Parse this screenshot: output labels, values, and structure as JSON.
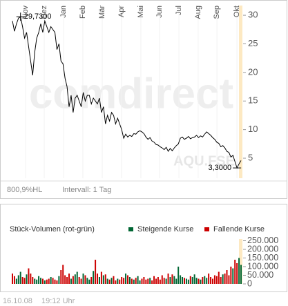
{
  "chart_data": [
    {
      "type": "line",
      "color": "#000000",
      "xlim": [
        0,
        113
      ],
      "xticks": [
        {
          "value": 6.5,
          "label": "Nov"
        },
        {
          "value": 15.7,
          "label": "Dez"
        },
        {
          "value": 25.3,
          "label": "Jan"
        },
        {
          "value": 34.8,
          "label": "Feb"
        },
        {
          "value": 44.4,
          "label": "Mär"
        },
        {
          "value": 53.9,
          "label": "Apr"
        },
        {
          "value": 63.5,
          "label": "Mai"
        },
        {
          "value": 72.7,
          "label": "Jun"
        },
        {
          "value": 82.3,
          "label": "Jul"
        },
        {
          "value": 91.8,
          "label": "Aug"
        },
        {
          "value": 101.1,
          "label": "Sep"
        },
        {
          "value": 111,
          "label": "Okt"
        }
      ],
      "ylim": [
        1.5,
        31.7
      ],
      "yticks": [
        5,
        10,
        15,
        20,
        25,
        30
      ],
      "values": [
        29,
        27.2,
        28.5,
        29.5,
        29.73,
        28,
        26,
        27,
        24.5,
        22,
        19.5,
        23.5,
        26,
        27,
        28.5,
        27,
        29,
        28,
        27,
        28,
        27.5,
        27,
        24,
        25,
        22,
        21.5,
        19,
        17.5,
        14,
        16,
        13,
        15.5,
        16,
        15,
        14,
        16.5,
        15,
        16,
        16,
        14.5,
        15.5,
        15,
        14.5,
        15.5,
        13,
        14,
        11,
        12.5,
        11.5,
        13,
        12.5,
        11,
        12,
        11,
        10,
        8.5,
        9.2,
        8.7,
        9,
        8.8,
        9.3,
        9.2,
        9.6,
        9.8,
        9.6,
        9.3,
        8.7,
        8.3,
        8.6,
        8,
        7.8,
        7.4,
        7.3,
        7,
        6.8,
        6.5,
        6.9,
        6.2,
        6.7,
        6.3,
        6.8,
        7.2,
        7.5,
        8.5,
        8.7,
        8.3,
        8.5,
        8.8,
        8.4,
        8.6,
        8.7,
        9,
        8.6,
        8.9,
        8.7,
        9.2,
        9.6,
        9.3,
        9,
        8.6,
        8.3,
        7.8,
        7.6,
        7,
        7.2,
        6.8,
        6.2,
        6,
        5.2,
        5.5,
        4.4,
        3.3,
        4,
        4.6
      ],
      "max_label": "29,7300",
      "min_label": "3,3000",
      "watermark": "comdirect",
      "symbol": "AQU.FSE",
      "range_note": "800,9%HL",
      "interval": "Intervall: 1 Tag"
    },
    {
      "type": "bar",
      "title": "Stück-Volumen (rot-grün)",
      "series_names": [
        "Steigende Kurse",
        "Fallende Kurse"
      ],
      "rising_color": "#006633",
      "falling_color": "#cc0000",
      "xlim": [
        0,
        113
      ],
      "ylim": [
        0,
        260000
      ],
      "yticks": [
        {
          "value": 250000,
          "label": "250.000"
        },
        {
          "value": 200000,
          "label": "200.000"
        },
        {
          "value": 150000,
          "label": "150.000"
        },
        {
          "value": 100000,
          "label": "100.000"
        },
        {
          "value": 50000,
          "label": "50.000"
        },
        0
      ],
      "values": [
        60000,
        45000,
        30000,
        50000,
        70000,
        40000,
        35000,
        55000,
        90000,
        60000,
        40000,
        30000,
        25000,
        45000,
        35000,
        30000,
        20000,
        25000,
        30000,
        40000,
        35000,
        25000,
        20000,
        45000,
        80000,
        110000,
        50000,
        40000,
        60000,
        30000,
        45000,
        55000,
        70000,
        40000,
        30000,
        60000,
        50000,
        35000,
        25000,
        40000,
        75000,
        140000,
        60000,
        40000,
        70000,
        50000,
        55000,
        30000,
        25000,
        35000,
        45000,
        20000,
        30000,
        25000,
        40000,
        35000,
        60000,
        50000,
        40000,
        30000,
        25000,
        35000,
        45000,
        20000,
        30000,
        40000,
        25000,
        30000,
        35000,
        20000,
        45000,
        30000,
        40000,
        25000,
        50000,
        35000,
        30000,
        60000,
        40000,
        55000,
        45000,
        30000,
        100000,
        50000,
        40000,
        35000,
        30000,
        25000,
        45000,
        40000,
        55000,
        35000,
        30000,
        25000,
        40000,
        45000,
        35000,
        60000,
        40000,
        30000,
        50000,
        45000,
        70000,
        40000,
        55000,
        60000,
        80000,
        50000,
        100000,
        90000,
        140000,
        120000,
        150000,
        110000
      ],
      "date": "16.10.08",
      "time": "19:12 Uhr"
    }
  ]
}
